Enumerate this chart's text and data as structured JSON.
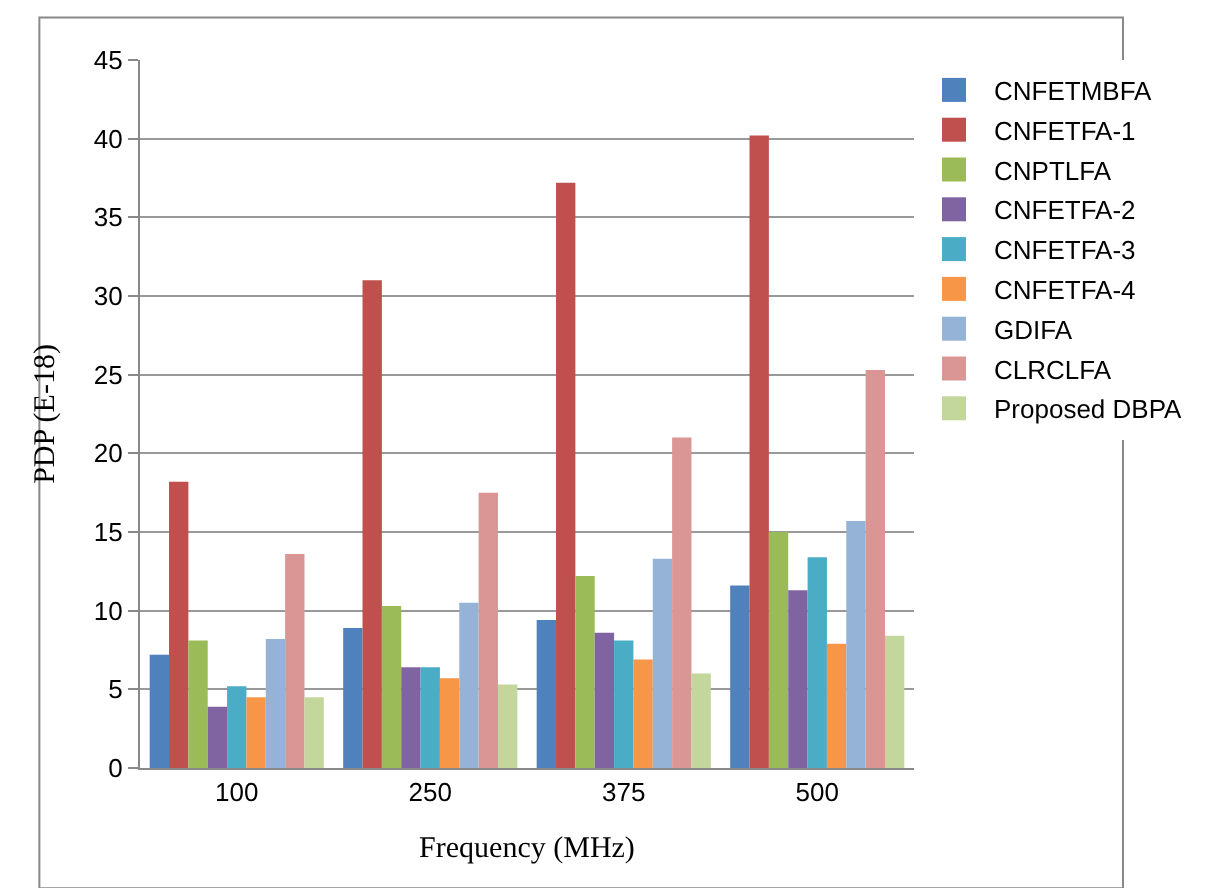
{
  "chart_data": {
    "type": "bar",
    "xlabel": "Frequency (MHz)",
    "ylabel": "PDP (E-18)",
    "categories": [
      "100",
      "250",
      "375",
      "500"
    ],
    "ylim": [
      0,
      45
    ],
    "yticks": [
      0,
      5,
      10,
      15,
      20,
      25,
      30,
      35,
      40,
      45
    ],
    "grid": "y",
    "legend": "right",
    "series": [
      {
        "name": "CNFETMBFA",
        "color": "#4f81bd",
        "values": [
          7.2,
          8.9,
          9.4,
          11.6
        ]
      },
      {
        "name": "CNFETFA-1",
        "color": "#c0504d",
        "values": [
          18.2,
          31.0,
          37.2,
          40.2
        ]
      },
      {
        "name": "CNPTLFA",
        "color": "#9bbb59",
        "values": [
          8.1,
          10.3,
          12.2,
          15.0
        ]
      },
      {
        "name": "CNFETFA-2",
        "color": "#8064a2",
        "values": [
          3.9,
          6.4,
          8.6,
          11.3
        ]
      },
      {
        "name": "CNFETFA-3",
        "color": "#4bacc6",
        "values": [
          5.2,
          6.4,
          8.1,
          13.4
        ]
      },
      {
        "name": "CNFETFA-4",
        "color": "#f79646",
        "values": [
          4.5,
          5.7,
          6.9,
          7.9
        ]
      },
      {
        "name": "GDIFA",
        "color": "#95b3d7",
        "values": [
          8.2,
          10.5,
          13.3,
          15.7
        ]
      },
      {
        "name": "CLRCLFA",
        "color": "#d99694",
        "values": [
          13.6,
          17.5,
          21.0,
          25.3
        ]
      },
      {
        "name": "Proposed DBPA",
        "color": "#c3d69b",
        "values": [
          4.5,
          5.3,
          6.0,
          8.4
        ]
      }
    ]
  }
}
